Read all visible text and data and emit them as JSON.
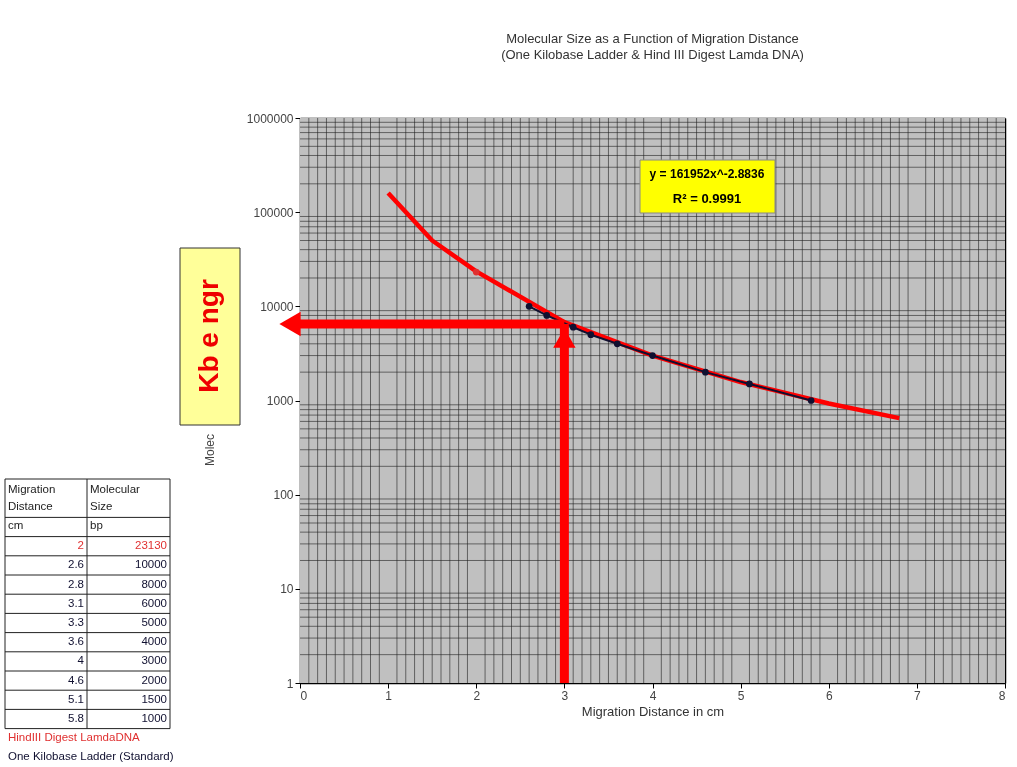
{
  "chart_data": {
    "type": "scatter",
    "title": "Molecular Size as a Function of Migration Distance",
    "subtitle": "(One Kilobase Ladder & Hind III Digest Lamda DNA)",
    "xlabel": "Migration Distance in cm",
    "ylabel": "Molec",
    "series": [
      {
        "name": "HindIII Digest LamdaDNA",
        "color": "#e03030",
        "marker": "circle",
        "x": [
          2
        ],
        "values": [
          23130
        ]
      },
      {
        "name": "One Kilobase Ladder (Standard)",
        "color": "#101030",
        "type": "line",
        "marker": "circle",
        "x": [
          2.6,
          2.8,
          3.1,
          3.3,
          3.6,
          4,
          4.6,
          5.1,
          5.8
        ],
        "values": [
          10000,
          8000,
          6000,
          5000,
          4000,
          3000,
          2000,
          1500,
          1000
        ]
      },
      {
        "color": "#ff0000",
        "type": "line",
        "x": [
          1,
          1.5,
          2,
          3,
          4,
          5,
          6,
          6.8
        ],
        "values": [
          160000,
          50000,
          23500,
          6800,
          3000,
          1570,
          930,
          650
        ]
      }
    ],
    "log": "y",
    "xlim": [
      0,
      8
    ],
    "xticks": [
      0,
      1,
      2,
      3,
      4,
      5,
      6,
      7,
      8
    ],
    "ylim": [
      1,
      1000000
    ],
    "yticks": [
      1,
      10,
      100,
      1000,
      10000,
      100000,
      1000000
    ],
    "grid": true,
    "legend": "left",
    "ref_lines": [
      {
        "axis": "x",
        "value": 3,
        "color": "#ff0000"
      },
      {
        "axis": "y",
        "value": 6500,
        "color": "#ff0000"
      }
    ],
    "annotations": [
      "y = 161952x^-2.8836",
      "R² = 0.9991",
      "Kb e ngr",
      "Migration Distance",
      "cm",
      "Molecular Size",
      "bp",
      "2",
      "23130",
      "2.6",
      "10000",
      "2.8",
      "8000",
      "3.1",
      "6000",
      "3.3",
      "5000",
      "3.6",
      "4000",
      "4",
      "3000",
      "4.6",
      "2000",
      "5.1",
      "1500",
      "5.8",
      "1000"
    ]
  }
}
